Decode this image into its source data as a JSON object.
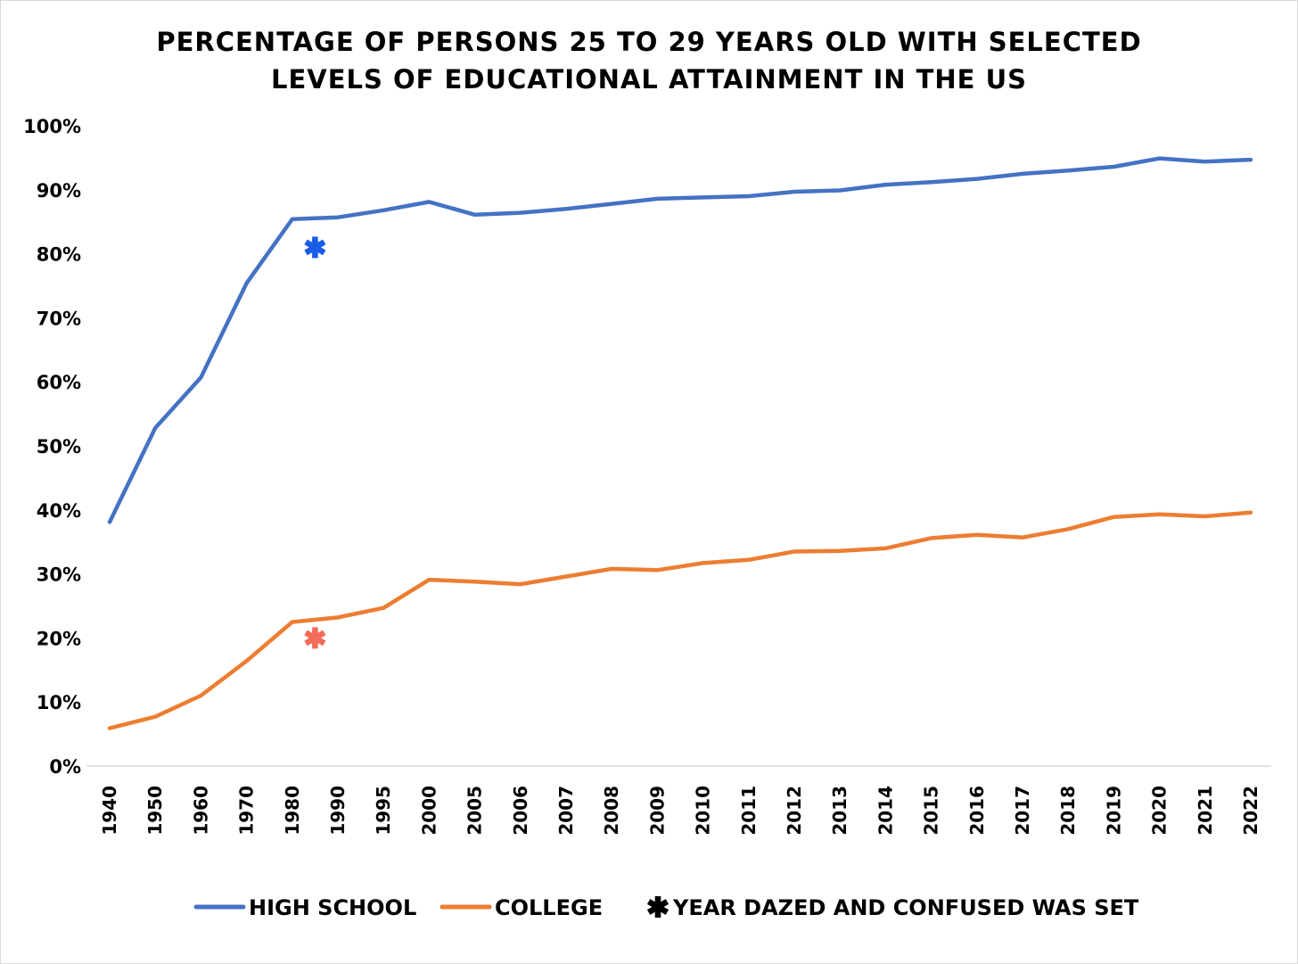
{
  "chart_data": {
    "type": "line",
    "title_lines": [
      "PERCENTAGE OF PERSONS 25 TO 29 YEARS OLD WITH SELECTED",
      "LEVELS OF EDUCATIONAL ATTAINMENT IN THE US"
    ],
    "categories": [
      "1940",
      "1950",
      "1960",
      "1970",
      "1980",
      "1990",
      "1995",
      "2000",
      "2005",
      "2006",
      "2007",
      "2008",
      "2009",
      "2010",
      "2011",
      "2012",
      "2013",
      "2014",
      "2015",
      "2016",
      "2017",
      "2018",
      "2019",
      "2020",
      "2021",
      "2022"
    ],
    "ylim": [
      0,
      100
    ],
    "y_ticks": [
      "0%",
      "10%",
      "20%",
      "30%",
      "40%",
      "50%",
      "60%",
      "70%",
      "80%",
      "90%",
      "100%"
    ],
    "grid": false,
    "legend_position": "bottom",
    "series": [
      {
        "name": "HIGH SCHOOL",
        "color": "#4472C4",
        "values": [
          38.1,
          52.8,
          60.7,
          75.4,
          85.4,
          85.7,
          86.8,
          88.1,
          86.1,
          86.4,
          87.0,
          87.8,
          88.6,
          88.8,
          89.0,
          89.7,
          89.9,
          90.8,
          91.2,
          91.7,
          92.5,
          93.0,
          93.6,
          94.9,
          94.4,
          94.7
        ]
      },
      {
        "name": "COLLEGE",
        "color": "#ED7D31",
        "values": [
          5.9,
          7.7,
          11.0,
          16.4,
          22.5,
          23.2,
          24.7,
          29.1,
          28.8,
          28.4,
          29.6,
          30.8,
          30.6,
          31.7,
          32.2,
          33.5,
          33.6,
          34.0,
          35.6,
          36.1,
          35.7,
          37.0,
          38.9,
          39.3,
          39.0,
          39.6
        ]
      }
    ],
    "markers": [
      {
        "series": "HIGH SCHOOL",
        "x_position": 4.5,
        "value": 81.0,
        "color": "#1A5CE8"
      },
      {
        "series": "COLLEGE",
        "x_position": 4.5,
        "value": 20.0,
        "color": "#F46B5A"
      }
    ],
    "legend": [
      {
        "label": "HIGH SCHOOL",
        "kind": "line",
        "color": "#4472C4"
      },
      {
        "label": "COLLEGE",
        "kind": "line",
        "color": "#ED7D31"
      },
      {
        "label": "YEAR DAZED AND CONFUSED WAS SET",
        "kind": "asterisk",
        "color": "#000000"
      }
    ]
  }
}
